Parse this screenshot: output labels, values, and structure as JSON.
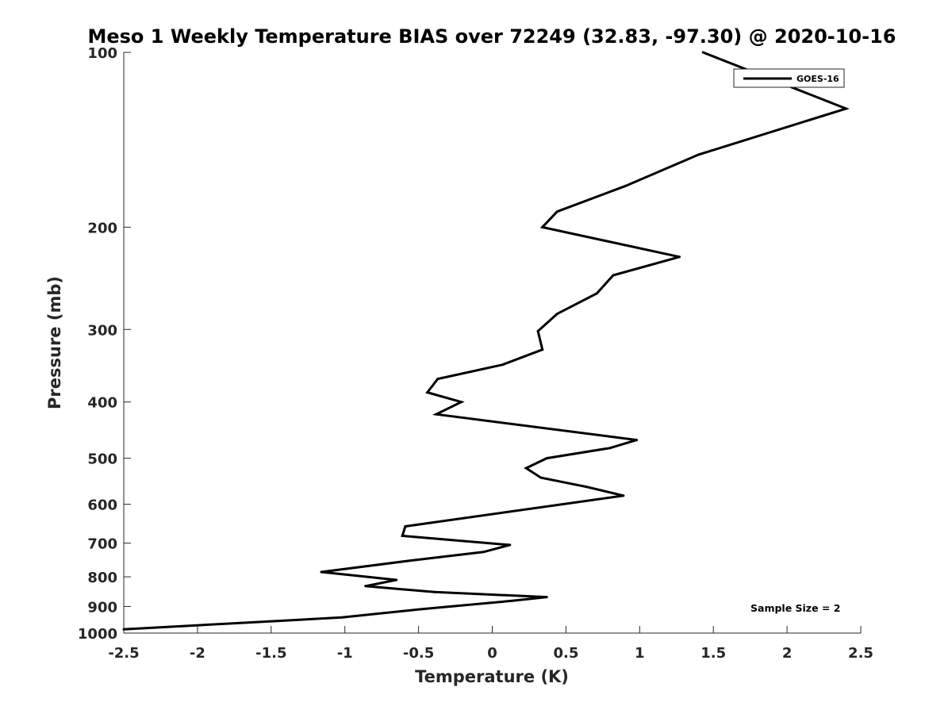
{
  "chart_data": {
    "type": "line",
    "title": "Meso 1 Weekly Temperature BIAS over 72249 (32.83, -97.30) @ 2020-10-16",
    "xlabel": "Temperature (K)",
    "ylabel": "Pressure (mb)",
    "xlim": [
      -2.5,
      2.5
    ],
    "ylim": [
      100,
      1000
    ],
    "y_scale": "log",
    "y_reversed": true,
    "x_ticks": [
      "-2.5",
      "-2",
      "-1.5",
      "-1",
      "-0.5",
      "0",
      "0.5",
      "1",
      "1.5",
      "2",
      "2.5"
    ],
    "y_ticks": [
      "100",
      "200",
      "300",
      "400",
      "500",
      "600",
      "700",
      "800",
      "900",
      "1000"
    ],
    "legend": {
      "position": "top-right",
      "entries": [
        "GOES-16"
      ]
    },
    "annotation": "Sample Size = 2",
    "grid": false,
    "series": [
      {
        "name": "GOES-16",
        "color": "#000000",
        "x": [
          1.43,
          2.4,
          1.4,
          0.9,
          0.44,
          0.34,
          1.27,
          0.82,
          0.71,
          0.44,
          0.31,
          0.34,
          0.07,
          -0.37,
          -0.44,
          -0.21,
          -0.38,
          0.98,
          0.8,
          0.37,
          0.23,
          0.33,
          0.64,
          0.89,
          -0.59,
          -0.61,
          0.12,
          -0.06,
          -0.55,
          -1.16,
          -0.65,
          -0.86,
          -0.39,
          0.37,
          0.13,
          -0.49,
          -1.02,
          -2.5
        ],
        "y": [
          100,
          125,
          150,
          170,
          188,
          200,
          225,
          242,
          260,
          282,
          302,
          325,
          345,
          365,
          385,
          400,
          420,
          465,
          480,
          500,
          520,
          540,
          560,
          580,
          655,
          680,
          705,
          725,
          750,
          785,
          810,
          830,
          850,
          867,
          880,
          910,
          940,
          985
        ]
      }
    ]
  }
}
